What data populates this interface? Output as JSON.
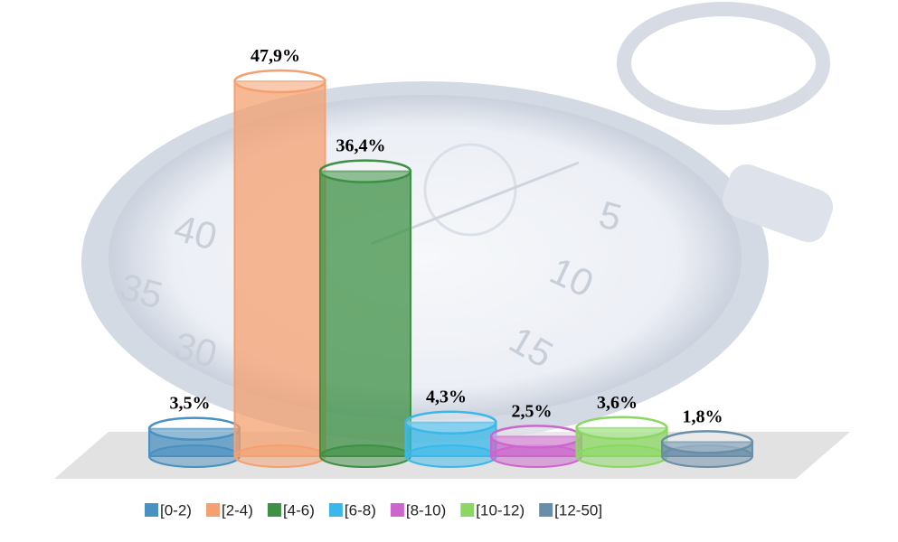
{
  "chart_data": {
    "type": "cylinder-bar",
    "categories": [
      "[0-2)",
      "[2-4)",
      "[4-6)",
      "[6-8)",
      "[8-10)",
      "[10-12)",
      "[12-50]"
    ],
    "values": [
      3.5,
      47.9,
      36.4,
      4.3,
      2.5,
      3.6,
      1.8
    ],
    "value_labels": [
      "3,5%",
      "47,9%",
      "36,4%",
      "4,3%",
      "2,5%",
      "3,6%",
      "1,8%"
    ],
    "colors": [
      "#4a90c0",
      "#f4a070",
      "#3e9044",
      "#3ab8ea",
      "#cc66cc",
      "#8ad862",
      "#6a8ea8"
    ],
    "legend": "bottom"
  }
}
